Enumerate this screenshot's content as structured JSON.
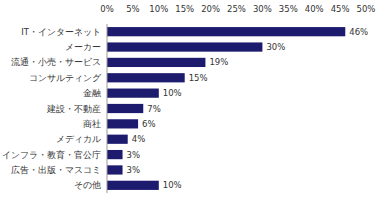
{
  "chart_data": {
    "type": "bar",
    "orientation": "horizontal",
    "categories": [
      "IT・インターネット",
      "メーカー",
      "流通・小売・サービス",
      "コンサルティング",
      "金融",
      "建設・不動産",
      "商社",
      "メディカル",
      "インフラ・教育・官公庁",
      "広告・出版・マスコミ",
      "その他"
    ],
    "values": [
      46,
      30,
      19,
      15,
      10,
      7,
      6,
      4,
      3,
      3,
      10
    ],
    "value_labels": [
      "46%",
      "30%",
      "19%",
      "15%",
      "10%",
      "7%",
      "6%",
      "4%",
      "3%",
      "3%",
      "10%"
    ],
    "color": "#1c1b6e",
    "xlim": [
      0,
      50
    ],
    "xticks": [
      {
        "value": 0,
        "label": "0%"
      },
      {
        "value": 5,
        "label": "5%"
      },
      {
        "value": 10,
        "label": "10%"
      },
      {
        "value": 15,
        "label": "15%"
      },
      {
        "value": 20,
        "label": "20%"
      },
      {
        "value": 25,
        "label": "25%"
      },
      {
        "value": 30,
        "label": "30%"
      },
      {
        "value": 35,
        "label": "35%"
      },
      {
        "value": 40,
        "label": "40%"
      },
      {
        "value": 45,
        "label": "45%"
      },
      {
        "value": 50,
        "label": "50%"
      }
    ],
    "grid": false,
    "data_labels": true
  }
}
